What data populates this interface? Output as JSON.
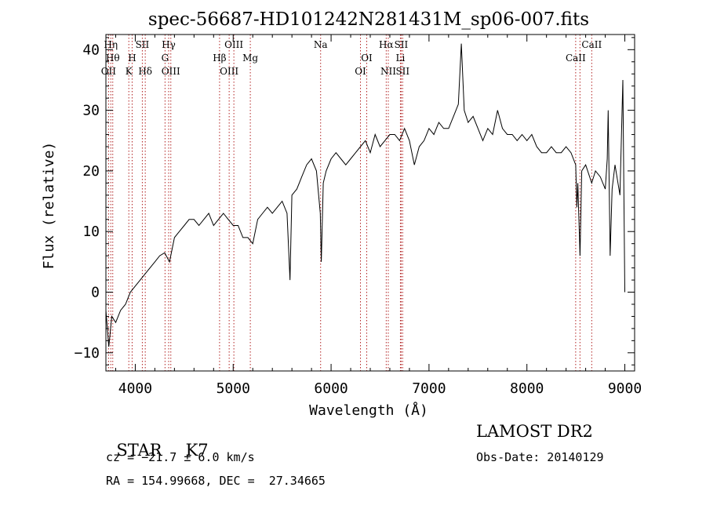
{
  "chart_data": {
    "type": "line",
    "title": "spec-56687-HD101242N281431M_sp06-007.fits",
    "xlabel": "Wavelength (Å)",
    "ylabel": "Flux (relative)",
    "xlim": [
      3700,
      9100
    ],
    "ylim": [
      -13,
      42.5
    ],
    "xticks": [
      4000,
      5000,
      6000,
      7000,
      8000,
      9000
    ],
    "yticks": [
      -10,
      0,
      10,
      20,
      30,
      40
    ],
    "series": [
      {
        "x": [
          3700,
          3730,
          3760,
          3800,
          3850,
          3900,
          3950,
          4000,
          4050,
          4100,
          4150,
          4200,
          4250,
          4300,
          4350,
          4400,
          4450,
          4500,
          4550,
          4600,
          4650,
          4700,
          4750,
          4800,
          4850,
          4900,
          4950,
          5000,
          5050,
          5100,
          5150,
          5200,
          5250,
          5300,
          5350,
          5400,
          5450,
          5500,
          5550,
          5580,
          5600,
          5650,
          5700,
          5750,
          5800,
          5850,
          5890,
          5900,
          5920,
          5950,
          6000,
          6050,
          6100,
          6150,
          6200,
          6250,
          6300,
          6350,
          6400,
          6450,
          6500,
          6550,
          6600,
          6650,
          6700,
          6750,
          6800,
          6850,
          6900,
          6950,
          7000,
          7050,
          7100,
          7150,
          7200,
          7250,
          7300,
          7330,
          7360,
          7400,
          7450,
          7500,
          7550,
          7600,
          7650,
          7700,
          7750,
          7800,
          7850,
          7900,
          7950,
          8000,
          8050,
          8100,
          8150,
          8200,
          8250,
          8300,
          8350,
          8400,
          8450,
          8498,
          8510,
          8520,
          8542,
          8560,
          8600,
          8662,
          8700,
          8750,
          8800,
          8820,
          8830,
          8850,
          8870,
          8900,
          8950,
          8980,
          9000
        ],
        "y": [
          -3,
          -9,
          -4,
          -5,
          -3,
          -2,
          0,
          1,
          2,
          3,
          4,
          5,
          6,
          6.5,
          5,
          9,
          10,
          11,
          12,
          12,
          11,
          12,
          13,
          11,
          12,
          13,
          12,
          11,
          11,
          9,
          9,
          8,
          12,
          13,
          14,
          13,
          14,
          15,
          13,
          2,
          16,
          17,
          19,
          21,
          22,
          20,
          13,
          5,
          18,
          20,
          22,
          23,
          22,
          21,
          22,
          23,
          24,
          25,
          23,
          26,
          24,
          25,
          26,
          26,
          25,
          27,
          25,
          21,
          24,
          25,
          27,
          26,
          28,
          27,
          27,
          29,
          31,
          41,
          30,
          28,
          29,
          27,
          25,
          27,
          26,
          30,
          27,
          26,
          26,
          25,
          26,
          25,
          26,
          24,
          23,
          23,
          24,
          23,
          23,
          24,
          23,
          21,
          14,
          18,
          6,
          20,
          21,
          18,
          20,
          19,
          17,
          22,
          30,
          6,
          17,
          21,
          16,
          35,
          0
        ]
      }
    ],
    "lines": [
      {
        "name": "Hη",
        "x": 3750,
        "row": 0
      },
      {
        "name": "Hθ",
        "x": 3770,
        "row": 1
      },
      {
        "name": "OII",
        "x": 3727,
        "row": 2
      },
      {
        "name": "SII",
        "x": 4072,
        "row": 0
      },
      {
        "name": "H",
        "x": 3968,
        "row": 1
      },
      {
        "name": "K",
        "x": 3934,
        "row": 2
      },
      {
        "name": "Hδ",
        "x": 4102,
        "row": 2
      },
      {
        "name": "Hγ",
        "x": 4341,
        "row": 0
      },
      {
        "name": "G",
        "x": 4304,
        "row": 1
      },
      {
        "name": "OIII",
        "x": 4363,
        "row": 2
      },
      {
        "name": "OIII",
        "x": 5007,
        "row": 0
      },
      {
        "name": "Hβ",
        "x": 4861,
        "row": 1
      },
      {
        "name": "OIII",
        "x": 4959,
        "row": 2
      },
      {
        "name": "Mg",
        "x": 5175,
        "row": 1
      },
      {
        "name": "Na",
        "x": 5893,
        "row": 0
      },
      {
        "name": "OI",
        "x": 6364,
        "row": 1
      },
      {
        "name": "OI",
        "x": 6300,
        "row": 2
      },
      {
        "name": "Hα",
        "x": 6563,
        "row": 0
      },
      {
        "name": "NII",
        "x": 6584,
        "row": 2
      },
      {
        "name": "SII",
        "x": 6716,
        "row": 0
      },
      {
        "name": "Li",
        "x": 6708,
        "row": 1
      },
      {
        "name": "SII",
        "x": 6731,
        "row": 2
      },
      {
        "name": "CaII",
        "x": 8662,
        "row": 0
      },
      {
        "name": "CaII",
        "x": 8498,
        "row": 1
      },
      {
        "name": "",
        "x": 8542,
        "row": 0
      }
    ]
  },
  "footer": {
    "class": "STAR",
    "subclass": "K7",
    "survey": "LAMOST DR2",
    "cz": "cz = −21.7 ± 6.0 km/s",
    "obs_date": "Obs-Date: 20140129",
    "coords": "RA = 154.99668, DEC =  27.34665"
  },
  "colors": {
    "spectrum": "#000000",
    "line_markers": "#b22222",
    "axes": "#000000"
  }
}
